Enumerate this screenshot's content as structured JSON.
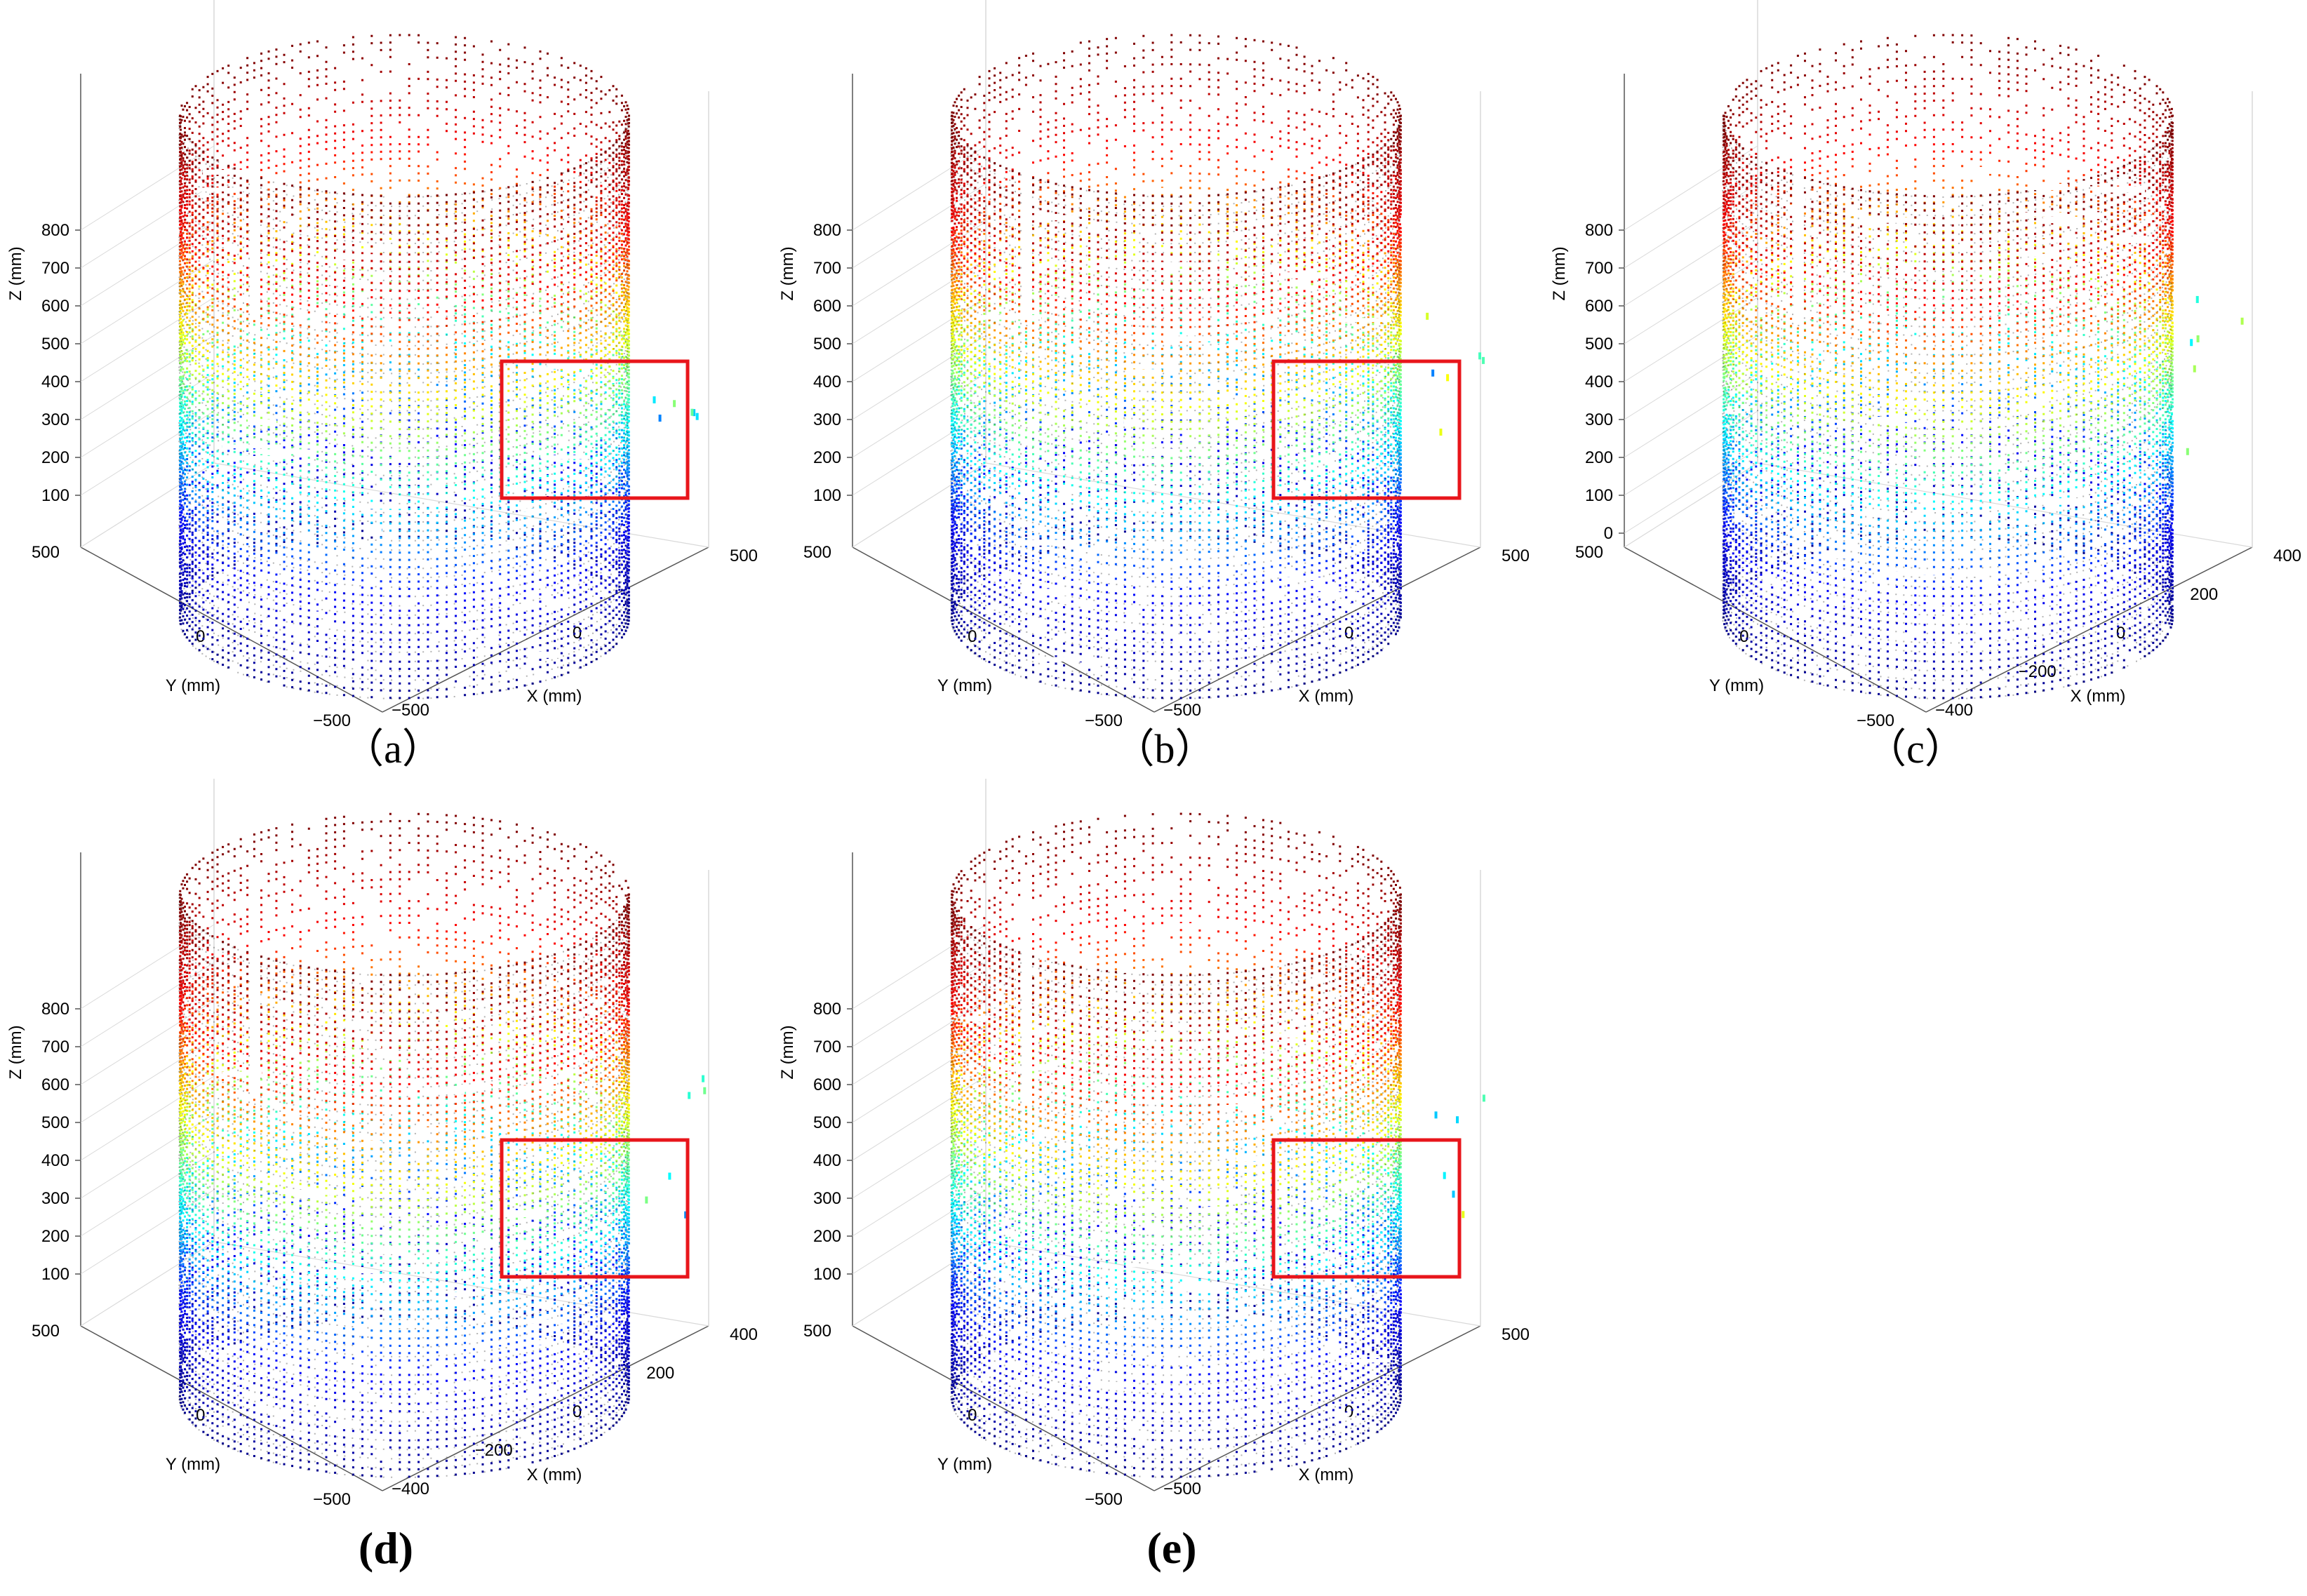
{
  "figure": {
    "colors": {
      "colormap": [
        "#00008f",
        "#0000ff",
        "#00ffff",
        "#ffff00",
        "#ff0000",
        "#800000"
      ],
      "highlight_box": "#e8151b",
      "grid": "#d9d9d9",
      "axis": "#555555"
    }
  },
  "panels": [
    {
      "id": "a",
      "caption": "（a）",
      "caption_bold": false,
      "has_highlight_box": true,
      "chart_data": {
        "type": "scatter3d",
        "xlabel": "X (mm)",
        "ylabel": "Y (mm)",
        "zlabel": "Z (mm)",
        "xticks": [
          "−500",
          "0",
          "500"
        ],
        "yticks": [
          "500",
          "0",
          "−500"
        ],
        "zticks": [
          "100",
          "200",
          "300",
          "400",
          "500",
          "600",
          "700",
          "800"
        ],
        "cylinder": {
          "radius_mm": 500,
          "height_mm": 850
        },
        "colorby": "z"
      }
    },
    {
      "id": "b",
      "caption": "（b）",
      "caption_bold": false,
      "has_highlight_box": true,
      "chart_data": {
        "type": "scatter3d",
        "xlabel": "X (mm)",
        "ylabel": "Y (mm)",
        "zlabel": "Z (mm)",
        "xticks": [
          "−500",
          "0",
          "500"
        ],
        "yticks": [
          "500",
          "0",
          "−500"
        ],
        "zticks": [
          "100",
          "200",
          "300",
          "400",
          "500",
          "600",
          "700",
          "800"
        ],
        "cylinder": {
          "radius_mm": 500,
          "height_mm": 850
        },
        "colorby": "z"
      }
    },
    {
      "id": "c",
      "caption": "（c）",
      "caption_bold": false,
      "has_highlight_box": false,
      "chart_data": {
        "type": "scatter3d",
        "xlabel": "X (mm)",
        "ylabel": "Y (mm)",
        "zlabel": "Z (mm)",
        "xticks": [
          "−400",
          "−200",
          "0",
          "200",
          "400"
        ],
        "yticks": [
          "500",
          "0",
          "−500"
        ],
        "zticks": [
          "0",
          "100",
          "200",
          "300",
          "400",
          "500",
          "600",
          "700",
          "800"
        ],
        "cylinder": {
          "radius_mm": 500,
          "height_mm": 850
        },
        "colorby": "z"
      }
    },
    {
      "id": "d",
      "caption": "(d)",
      "caption_bold": true,
      "has_highlight_box": true,
      "chart_data": {
        "type": "scatter3d",
        "xlabel": "X (mm)",
        "ylabel": "Y (mm)",
        "zlabel": "Z (mm)",
        "xticks": [
          "−400",
          "−200",
          "0",
          "200",
          "400"
        ],
        "yticks": [
          "500",
          "0",
          "−500"
        ],
        "zticks": [
          "100",
          "200",
          "300",
          "400",
          "500",
          "600",
          "700",
          "800"
        ],
        "cylinder": {
          "radius_mm": 500,
          "height_mm": 850
        },
        "colorby": "z"
      }
    },
    {
      "id": "e",
      "caption": "(e)",
      "caption_bold": true,
      "has_highlight_box": true,
      "chart_data": {
        "type": "scatter3d",
        "xlabel": "X (mm)",
        "ylabel": "Y (mm)",
        "zlabel": "Z (mm)",
        "xticks": [
          "−500",
          "0",
          "500"
        ],
        "yticks": [
          "500",
          "0",
          "−500"
        ],
        "zticks": [
          "100",
          "200",
          "300",
          "400",
          "500",
          "600",
          "700",
          "800"
        ],
        "cylinder": {
          "radius_mm": 500,
          "height_mm": 850
        },
        "colorby": "z"
      }
    }
  ]
}
